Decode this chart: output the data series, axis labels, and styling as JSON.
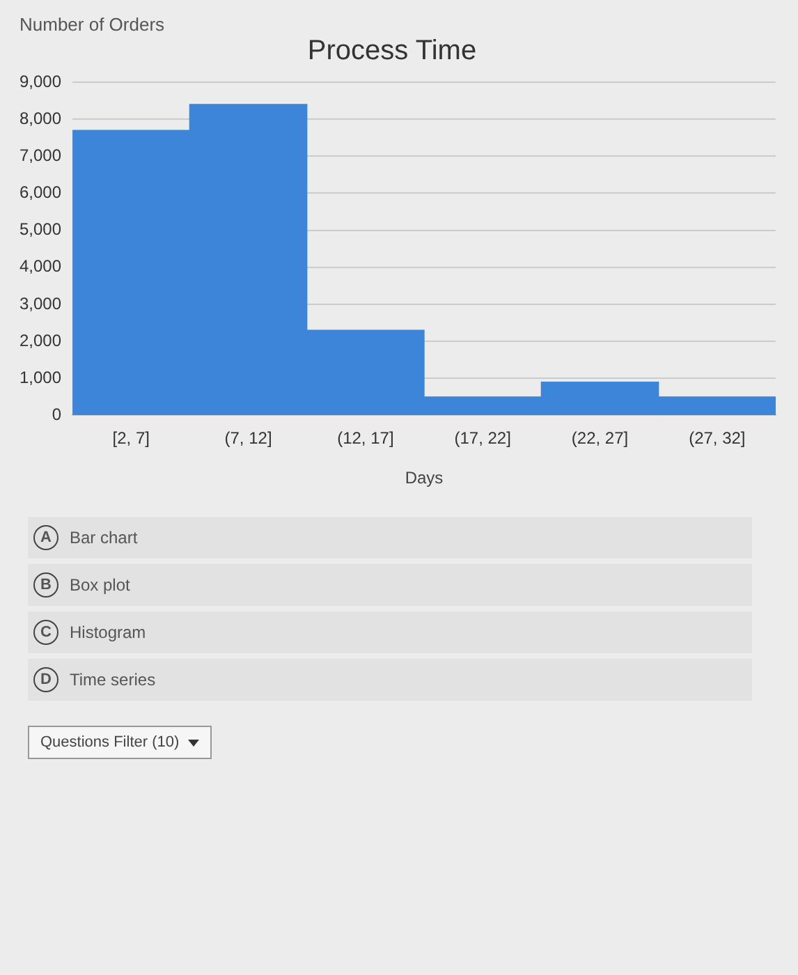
{
  "chart_data": {
    "type": "bar",
    "title": "Process Time",
    "xlabel": "Days",
    "ylabel": "Number of Orders",
    "categories": [
      "[2, 7]",
      "(7, 12]",
      "(12, 17]",
      "(17, 22]",
      "(22, 27]",
      "(27, 32]"
    ],
    "values": [
      7700,
      8400,
      2300,
      500,
      900,
      500
    ],
    "color": "#3d85d8",
    "ylim": [
      0,
      9000
    ],
    "yticks": [
      0,
      {
        "value": 1000,
        "label": "1,000"
      },
      {
        "value": 2000,
        "label": "2,000"
      },
      {
        "value": 3000,
        "label": "3,000"
      },
      {
        "value": 4000,
        "label": "4,000"
      },
      {
        "value": 5000,
        "label": "5,000"
      },
      {
        "value": 6000,
        "label": "6,000"
      },
      {
        "value": 7000,
        "label": "7,000"
      },
      {
        "value": 8000,
        "label": "8,000"
      },
      {
        "value": 9000,
        "label": "9,000"
      }
    ],
    "grid": "y",
    "annotations": [
      "A",
      "Bar chart",
      "B",
      "Box plot",
      "C",
      "Histogram",
      "D",
      "Time series",
      "Questions Filter (10)"
    ]
  }
}
